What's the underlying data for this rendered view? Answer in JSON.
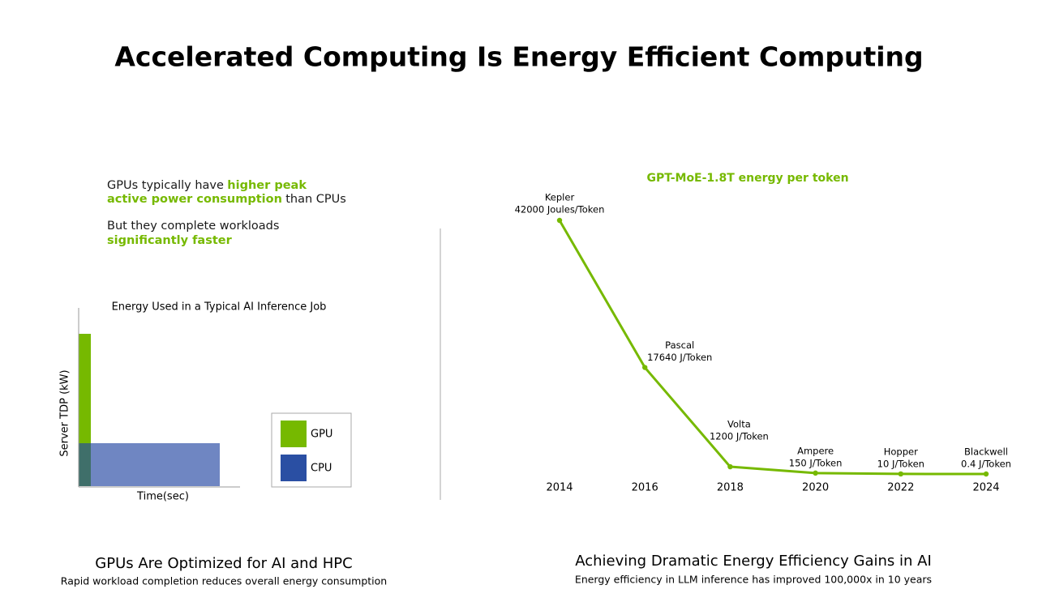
{
  "title": "Accelerated Computing Is Energy Efficient Computing",
  "left": {
    "intro": [
      [
        {
          "text": "GPUs typically have"
        },
        {
          "text": "higher peak",
          "highlight": true
        }
      ],
      [
        {
          "text": "active power consumption",
          "highlight": true
        },
        {
          "text": "than CPUs"
        }
      ],
      [
        {
          "text": "But they complete workloads"
        }
      ],
      [
        {
          "text": "significantly faster",
          "highlight": true
        }
      ]
    ],
    "chart_title": "Energy Used in a Typical AI Inference Job",
    "y_label": "Server TDP (kW)",
    "x_label": "Time(sec)",
    "legend": [
      {
        "name": "GPU",
        "color": "#76b900"
      },
      {
        "name": "CPU",
        "color": "#2a4fa3"
      }
    ],
    "caption_title": "GPUs Are Optimized for AI and HPC",
    "caption_text": "Rapid workload completion reduces overall energy consumption"
  },
  "chart_data": {
    "type": "line",
    "title": "GPT-MoE-1.8T energy per token",
    "x": [
      2014,
      2016,
      2018,
      2020,
      2022,
      2024
    ],
    "xlim": [
      2014,
      2024
    ],
    "xticks": [
      2014,
      2016,
      2018,
      2020,
      2022,
      2024
    ],
    "ylim": [
      0,
      42000
    ],
    "series": [
      {
        "color": "#76b900",
        "values": [
          42000,
          17640,
          1200,
          150,
          10,
          0.4
        ],
        "point_labels": [
          "Kepler",
          "Pascal",
          "Volta",
          "Ampere",
          "Hopper",
          "Blackwell"
        ],
        "value_labels": [
          "42000 Joules/Token",
          "17640 J/Token",
          "1200 J/Token",
          "150 J/Token",
          "10 J/Token",
          "0.4 J/Token"
        ]
      }
    ]
  },
  "right": {
    "caption_title": "Achieving Dramatic Energy Efficiency Gains in AI",
    "caption_text": "Energy efficiency in LLM inference has improved 100,000x in 10 years"
  }
}
